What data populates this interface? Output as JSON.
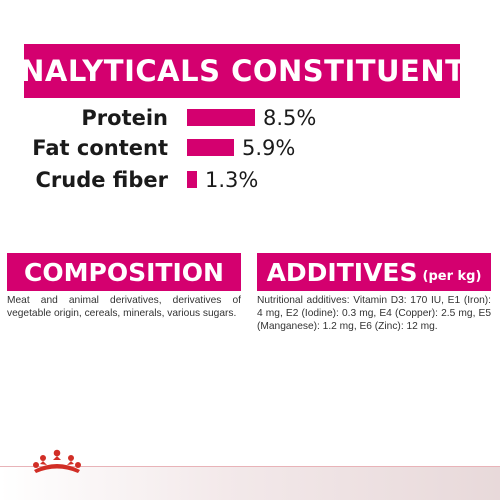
{
  "colors": {
    "accent": "#d4006f",
    "crown": "#d12e26"
  },
  "analytics": {
    "title": "ANALYTICALS CONSTITUENTS",
    "rows": [
      {
        "label": "Protein",
        "value": "8.5%",
        "percent": 8.5
      },
      {
        "label": "Fat content",
        "value": "5.9%",
        "percent": 5.9
      },
      {
        "label": "Crude fiber",
        "value": "1.3%",
        "percent": 1.3
      }
    ]
  },
  "composition": {
    "title": "COMPOSITION",
    "text": "Meat and animal derivatives, derivatives of vegetable origin, cereals, minerals, various sugars."
  },
  "additives": {
    "title": "ADDITIVES",
    "subtitle": "(per kg)",
    "text": "Nutritional additives: Vitamin D3: 170 IU, E1 (Iron): 4 mg, E2 (Iodine): 0.3 mg, E4 (Copper): 2.5 mg, E5 (Manganese): 1.2 mg, E6 (Zinc): 12 mg."
  },
  "footer": {
    "logo_icon": "royal-canin-crown-icon"
  }
}
